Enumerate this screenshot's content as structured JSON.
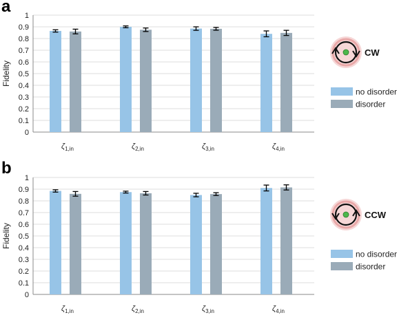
{
  "panels": [
    {
      "letter": "a",
      "direction": "CW",
      "arrow": "clockwise-orbit-icon",
      "chart_data": {
        "type": "bar",
        "ylabel": "Fidelity",
        "ylim": [
          0,
          1
        ],
        "yticks": [
          "0",
          "0.1",
          "0.2",
          "0.3",
          "0.4",
          "0.5",
          "0.6",
          "0.7",
          "0.8",
          "0.9",
          "1"
        ],
        "grid": true,
        "legend_position": "right",
        "categories": [
          {
            "main": "ζ",
            "sub": "1,in"
          },
          {
            "main": "ζ",
            "sub": "2,in"
          },
          {
            "main": "ζ",
            "sub": "3,in"
          },
          {
            "main": "ζ",
            "sub": "4,in"
          }
        ],
        "series": [
          {
            "name": "no disorder",
            "color": "#97c4e7",
            "values": [
              0.865,
              0.9,
              0.885,
              0.84
            ],
            "errors": [
              0.01,
              0.008,
              0.015,
              0.025
            ]
          },
          {
            "name": "disorder",
            "color": "#9aabb8",
            "values": [
              0.86,
              0.875,
              0.883,
              0.848
            ],
            "errors": [
              0.02,
              0.015,
              0.012,
              0.022
            ]
          }
        ]
      }
    },
    {
      "letter": "b",
      "direction": "CCW",
      "arrow": "counterclockwise-orbit-icon",
      "chart_data": {
        "type": "bar",
        "ylabel": "Fidelity",
        "ylim": [
          0,
          1
        ],
        "yticks": [
          "0",
          "0.1",
          "0.2",
          "0.3",
          "0.4",
          "0.5",
          "0.6",
          "0.7",
          "0.8",
          "0.9",
          "1"
        ],
        "grid": true,
        "legend_position": "right",
        "categories": [
          {
            "main": "ζ",
            "sub": "1,in"
          },
          {
            "main": "ζ",
            "sub": "2,in"
          },
          {
            "main": "ζ",
            "sub": "3,in"
          },
          {
            "main": "ζ",
            "sub": "4,in"
          }
        ],
        "series": [
          {
            "name": "no disorder",
            "color": "#97c4e7",
            "values": [
              0.885,
              0.875,
              0.85,
              0.91
            ],
            "errors": [
              0.01,
              0.008,
              0.015,
              0.025
            ]
          },
          {
            "name": "disorder",
            "color": "#9aabb8",
            "values": [
              0.86,
              0.865,
              0.858,
              0.915
            ],
            "errors": [
              0.02,
              0.015,
              0.012,
              0.022
            ]
          }
        ]
      }
    }
  ]
}
